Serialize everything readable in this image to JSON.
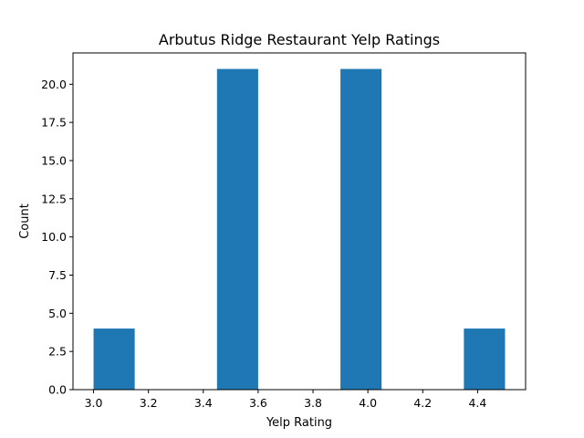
{
  "chart_data": {
    "type": "bar",
    "title": "Arbutus Ridge Restaurant Yelp Ratings",
    "xlabel": "Yelp Rating",
    "ylabel": "Count",
    "xlim": [
      2.925,
      4.575
    ],
    "ylim": [
      0,
      22.05
    ],
    "bins": [
      {
        "start": 3.0,
        "end": 3.15,
        "count": 4
      },
      {
        "start": 3.15,
        "end": 3.3,
        "count": 0
      },
      {
        "start": 3.3,
        "end": 3.45,
        "count": 0
      },
      {
        "start": 3.45,
        "end": 3.6,
        "count": 21
      },
      {
        "start": 3.6,
        "end": 3.75,
        "count": 0
      },
      {
        "start": 3.75,
        "end": 3.9,
        "count": 0
      },
      {
        "start": 3.9,
        "end": 4.05,
        "count": 21
      },
      {
        "start": 4.05,
        "end": 4.2,
        "count": 0
      },
      {
        "start": 4.2,
        "end": 4.35,
        "count": 0
      },
      {
        "start": 4.35,
        "end": 4.5,
        "count": 4
      }
    ],
    "xticks": [
      "3.0",
      "3.2",
      "3.4",
      "3.6",
      "3.8",
      "4.0",
      "4.2",
      "4.4"
    ],
    "yticks": [
      "0.0",
      "2.5",
      "5.0",
      "7.5",
      "10.0",
      "12.5",
      "15.0",
      "17.5",
      "20.0"
    ],
    "bar_color": "#1f77b4",
    "grid": false,
    "legend": "none"
  }
}
